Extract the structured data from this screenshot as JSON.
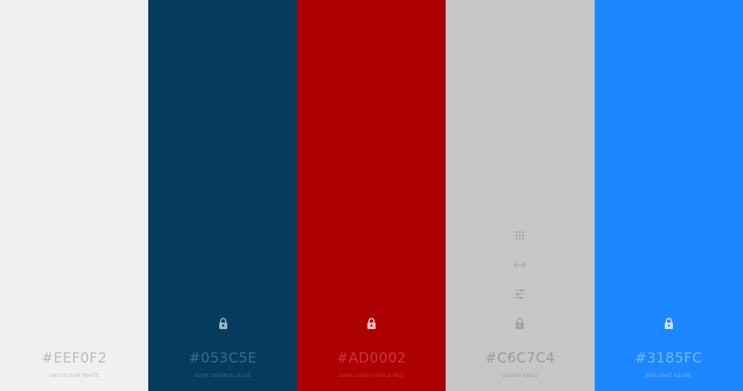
{
  "palette": {
    "swatches": [
      {
        "hex": "#EEF0F2",
        "name": "ANTI-FLASH WHITE",
        "background": "#EEF0F2",
        "text_color": "#B9BBBE",
        "icon_color": "#B9BBBE",
        "show_lock": false,
        "show_tools": false
      },
      {
        "hex": "#053C5E",
        "name": "DARK IMPERIAL BLUE",
        "background": "#053C5E",
        "text_color": "#3F6A88",
        "icon_color": "#9DB3C4",
        "show_lock": true,
        "show_tools": false
      },
      {
        "hex": "#AD0002",
        "name": "DARK CANDY APPLE RED",
        "background": "#AD0002",
        "text_color": "#C8393A",
        "icon_color": "#F1C9CA",
        "show_lock": true,
        "show_tools": false
      },
      {
        "hex": "#C6C7C4",
        "name": "SILVER SAND",
        "background": "#C6C7C4",
        "text_color": "#9A9B98",
        "icon_color": "#A3A4A1",
        "show_lock": true,
        "show_tools": true
      },
      {
        "hex": "#3185FC",
        "name": "BRILLIANT AZURE",
        "background": "#1C88FF",
        "text_color": "#7DB6FF",
        "icon_color": "#D3E6FF",
        "show_lock": true,
        "show_tools": false
      }
    ],
    "icons": {
      "grid": "drag-handle-grid-icon",
      "swap": "left-right-arrow-icon",
      "adjust": "sliders-adjust-icon",
      "lock": "lock-icon"
    }
  }
}
